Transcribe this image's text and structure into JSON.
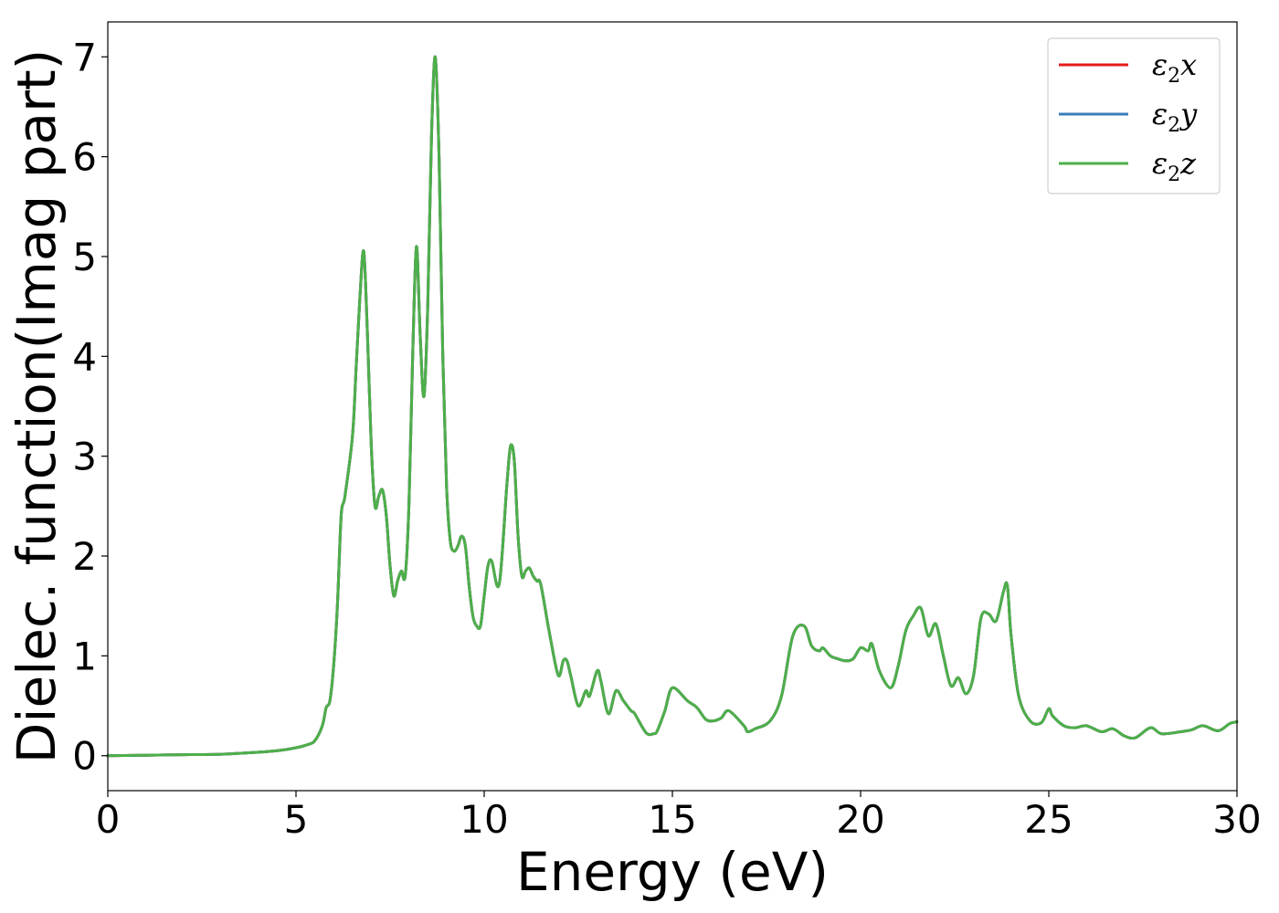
{
  "chart_data": {
    "type": "line",
    "xlabel": "Energy (eV)",
    "ylabel": "Dielec. function(Imag part)",
    "xlim": [
      0,
      30
    ],
    "ylim": [
      -0.35,
      7.35
    ],
    "xticks": [
      0,
      5,
      10,
      15,
      20,
      25,
      30
    ],
    "yticks": [
      0,
      1,
      2,
      3,
      4,
      5,
      6,
      7
    ],
    "grid": false,
    "legend_position": "top-right",
    "colors": {
      "x": "#e41a1c",
      "y": "#377eb8",
      "z": "#4daf4a"
    },
    "legend": [
      {
        "key": "x",
        "symbol": "ε",
        "sub": "2",
        "suffix": "x"
      },
      {
        "key": "y",
        "symbol": "ε",
        "sub": "2",
        "suffix": "y"
      },
      {
        "key": "z",
        "symbol": "ε",
        "sub": "2",
        "suffix": "z"
      }
    ],
    "x": [
      0,
      1,
      2,
      3,
      4,
      4.5,
      5,
      5.3,
      5.5,
      5.7,
      5.8,
      5.9,
      6.0,
      6.1,
      6.2,
      6.3,
      6.5,
      6.6,
      6.7,
      6.8,
      6.9,
      7.0,
      7.1,
      7.2,
      7.3,
      7.4,
      7.5,
      7.6,
      7.7,
      7.8,
      7.9,
      8.0,
      8.1,
      8.2,
      8.3,
      8.4,
      8.5,
      8.6,
      8.7,
      8.8,
      8.9,
      9.0,
      9.1,
      9.2,
      9.3,
      9.4,
      9.5,
      9.6,
      9.7,
      9.8,
      9.9,
      10.0,
      10.1,
      10.2,
      10.4,
      10.6,
      10.7,
      10.8,
      10.9,
      11.0,
      11.1,
      11.2,
      11.3,
      11.4,
      11.5,
      11.7,
      11.9,
      12.0,
      12.1,
      12.2,
      12.3,
      12.5,
      12.7,
      12.8,
      13.0,
      13.1,
      13.3,
      13.5,
      13.7,
      13.9,
      14.0,
      14.3,
      14.5,
      14.6,
      14.8,
      15.0,
      15.4,
      15.6,
      15.7,
      15.9,
      16.1,
      16.3,
      16.5,
      16.9,
      17.0,
      17.2,
      17.6,
      17.9,
      18.2,
      18.5,
      18.7,
      18.9,
      19.0,
      19.2,
      19.4,
      19.6,
      19.8,
      20.0,
      20.2,
      20.3,
      20.5,
      20.8,
      21.0,
      21.2,
      21.4,
      21.6,
      21.8,
      22.0,
      22.2,
      22.4,
      22.6,
      22.8,
      23.0,
      23.2,
      23.4,
      23.6,
      23.8,
      23.9,
      24.0,
      24.2,
      24.5,
      24.8,
      25.0,
      25.1,
      25.4,
      25.7,
      26.0,
      26.4,
      26.7,
      27.0,
      27.3,
      27.7,
      28.0,
      28.5,
      28.8,
      29.1,
      29.5,
      29.8,
      30.0
    ],
    "series": [
      {
        "key": "x",
        "values": [
          0.0,
          0.005,
          0.01,
          0.015,
          0.035,
          0.05,
          0.08,
          0.11,
          0.15,
          0.3,
          0.48,
          0.55,
          0.9,
          1.5,
          2.4,
          2.6,
          3.2,
          3.9,
          4.6,
          5.05,
          4.2,
          3.1,
          2.5,
          2.6,
          2.66,
          2.4,
          1.9,
          1.6,
          1.75,
          1.85,
          1.8,
          2.5,
          4.0,
          5.1,
          4.2,
          3.6,
          4.5,
          6.2,
          7.0,
          6.0,
          4.0,
          2.7,
          2.15,
          2.05,
          2.1,
          2.2,
          2.1,
          1.7,
          1.4,
          1.3,
          1.3,
          1.6,
          1.9,
          1.95,
          1.72,
          2.7,
          3.1,
          2.95,
          2.2,
          1.8,
          1.85,
          1.88,
          1.8,
          1.75,
          1.72,
          1.3,
          0.9,
          0.8,
          0.95,
          0.95,
          0.8,
          0.5,
          0.65,
          0.6,
          0.85,
          0.75,
          0.42,
          0.65,
          0.55,
          0.45,
          0.42,
          0.23,
          0.22,
          0.25,
          0.45,
          0.68,
          0.55,
          0.5,
          0.46,
          0.36,
          0.35,
          0.38,
          0.45,
          0.3,
          0.24,
          0.27,
          0.35,
          0.6,
          1.2,
          1.3,
          1.1,
          1.05,
          1.08,
          1.0,
          0.97,
          0.95,
          0.97,
          1.08,
          1.05,
          1.12,
          0.85,
          0.68,
          0.9,
          1.25,
          1.4,
          1.48,
          1.2,
          1.32,
          1.0,
          0.7,
          0.78,
          0.62,
          0.8,
          1.38,
          1.42,
          1.35,
          1.65,
          1.7,
          1.2,
          0.6,
          0.35,
          0.33,
          0.47,
          0.4,
          0.3,
          0.28,
          0.3,
          0.24,
          0.27,
          0.2,
          0.18,
          0.28,
          0.22,
          0.24,
          0.26,
          0.3,
          0.25,
          0.32,
          0.34
        ]
      },
      {
        "key": "y",
        "values": [
          0.0,
          0.005,
          0.01,
          0.015,
          0.035,
          0.05,
          0.08,
          0.11,
          0.15,
          0.3,
          0.48,
          0.55,
          0.9,
          1.5,
          2.4,
          2.6,
          3.2,
          3.9,
          4.6,
          5.05,
          4.2,
          3.1,
          2.5,
          2.6,
          2.66,
          2.4,
          1.9,
          1.6,
          1.75,
          1.85,
          1.8,
          2.5,
          4.0,
          5.1,
          4.2,
          3.6,
          4.5,
          6.2,
          7.0,
          6.0,
          4.0,
          2.7,
          2.15,
          2.05,
          2.1,
          2.2,
          2.1,
          1.7,
          1.4,
          1.3,
          1.3,
          1.6,
          1.9,
          1.95,
          1.72,
          2.7,
          3.1,
          2.95,
          2.2,
          1.8,
          1.85,
          1.88,
          1.8,
          1.75,
          1.72,
          1.3,
          0.9,
          0.8,
          0.95,
          0.95,
          0.8,
          0.5,
          0.65,
          0.6,
          0.85,
          0.75,
          0.42,
          0.65,
          0.55,
          0.45,
          0.42,
          0.23,
          0.22,
          0.25,
          0.45,
          0.68,
          0.55,
          0.5,
          0.46,
          0.36,
          0.35,
          0.38,
          0.45,
          0.3,
          0.24,
          0.27,
          0.35,
          0.6,
          1.2,
          1.3,
          1.1,
          1.05,
          1.08,
          1.0,
          0.97,
          0.95,
          0.97,
          1.08,
          1.05,
          1.12,
          0.85,
          0.68,
          0.9,
          1.25,
          1.4,
          1.48,
          1.2,
          1.32,
          1.0,
          0.7,
          0.78,
          0.62,
          0.8,
          1.38,
          1.42,
          1.35,
          1.65,
          1.7,
          1.2,
          0.6,
          0.35,
          0.33,
          0.47,
          0.4,
          0.3,
          0.28,
          0.3,
          0.24,
          0.27,
          0.2,
          0.18,
          0.28,
          0.22,
          0.24,
          0.26,
          0.3,
          0.25,
          0.32,
          0.34
        ]
      },
      {
        "key": "z",
        "values": [
          0.0,
          0.005,
          0.01,
          0.015,
          0.035,
          0.05,
          0.08,
          0.11,
          0.15,
          0.3,
          0.48,
          0.55,
          0.9,
          1.5,
          2.4,
          2.6,
          3.2,
          3.9,
          4.6,
          5.05,
          4.2,
          3.1,
          2.5,
          2.6,
          2.66,
          2.4,
          1.9,
          1.6,
          1.75,
          1.85,
          1.8,
          2.5,
          4.0,
          5.1,
          4.2,
          3.6,
          4.5,
          6.2,
          7.0,
          6.0,
          4.0,
          2.7,
          2.15,
          2.05,
          2.1,
          2.2,
          2.1,
          1.7,
          1.4,
          1.3,
          1.3,
          1.6,
          1.9,
          1.95,
          1.72,
          2.7,
          3.1,
          2.95,
          2.2,
          1.8,
          1.85,
          1.88,
          1.8,
          1.75,
          1.72,
          1.3,
          0.9,
          0.8,
          0.95,
          0.95,
          0.8,
          0.5,
          0.65,
          0.6,
          0.85,
          0.75,
          0.42,
          0.65,
          0.55,
          0.45,
          0.42,
          0.23,
          0.22,
          0.25,
          0.45,
          0.68,
          0.55,
          0.5,
          0.46,
          0.36,
          0.35,
          0.38,
          0.45,
          0.3,
          0.24,
          0.27,
          0.35,
          0.6,
          1.2,
          1.3,
          1.1,
          1.05,
          1.08,
          1.0,
          0.97,
          0.95,
          0.97,
          1.08,
          1.05,
          1.12,
          0.85,
          0.68,
          0.9,
          1.25,
          1.4,
          1.48,
          1.2,
          1.32,
          1.0,
          0.7,
          0.78,
          0.62,
          0.8,
          1.38,
          1.42,
          1.35,
          1.65,
          1.7,
          1.2,
          0.6,
          0.35,
          0.33,
          0.47,
          0.4,
          0.3,
          0.28,
          0.3,
          0.24,
          0.27,
          0.2,
          0.18,
          0.28,
          0.22,
          0.24,
          0.26,
          0.3,
          0.25,
          0.32,
          0.34
        ]
      }
    ]
  }
}
